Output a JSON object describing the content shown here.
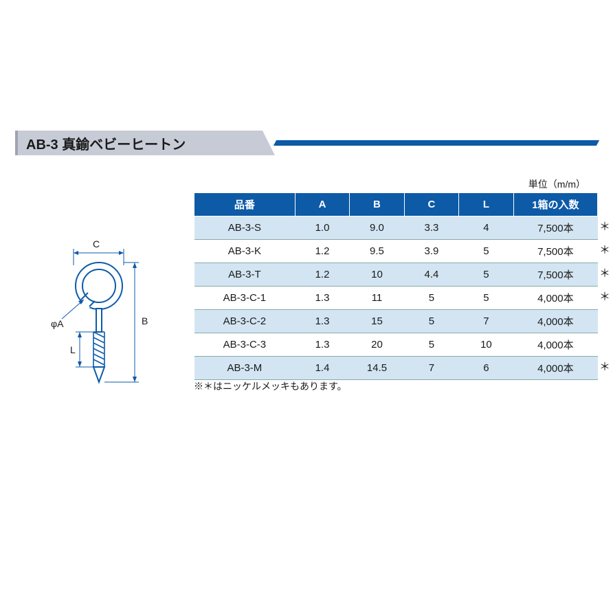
{
  "header": {
    "title": "AB-3 真鍮ベビーヒートン"
  },
  "unit_label": "単位（m/m）",
  "table": {
    "columns": [
      "品番",
      "A",
      "B",
      "C",
      "L",
      "1箱の入数"
    ],
    "rows": [
      {
        "part": "AB-3-S",
        "A": "1.0",
        "B": "9.0",
        "C": "3.3",
        "L": "4",
        "qty": "7,500本",
        "ast": "＊"
      },
      {
        "part": "AB-3-K",
        "A": "1.2",
        "B": "9.5",
        "C": "3.9",
        "L": "5",
        "qty": "7,500本",
        "ast": "＊"
      },
      {
        "part": "AB-3-T",
        "A": "1.2",
        "B": "10",
        "C": "4.4",
        "L": "5",
        "qty": "7,500本",
        "ast": "＊"
      },
      {
        "part": "AB-3-C-1",
        "A": "1.3",
        "B": "11",
        "C": "5",
        "L": "5",
        "qty": "4,000本",
        "ast": "＊"
      },
      {
        "part": "AB-3-C-2",
        "A": "1.3",
        "B": "15",
        "C": "5",
        "L": "7",
        "qty": "4,000本",
        "ast": ""
      },
      {
        "part": "AB-3-C-3",
        "A": "1.3",
        "B": "20",
        "C": "5",
        "L": "10",
        "qty": "4,000本",
        "ast": ""
      },
      {
        "part": "AB-3-M",
        "A": "1.4",
        "B": "14.5",
        "C": "7",
        "L": "6",
        "qty": "4,000本",
        "ast": "＊"
      }
    ]
  },
  "footnote": "※＊はニッケルメッキもあります。",
  "diagram": {
    "labels": {
      "A": "φA",
      "B": "B",
      "C": "C",
      "L": "L"
    },
    "colors": {
      "stroke": "#0d5aa7",
      "fill_light": "#d3e5f2"
    }
  },
  "styling": {
    "header_bg": "#c7cbd6",
    "header_accent": "#9fa4b3",
    "brand_blue": "#0d5aa7",
    "row_alt_bg": "#d3e5f2",
    "row_border": "#88aabb",
    "page_bg": "#ffffff",
    "font_body": 15,
    "font_header": 20,
    "font_small": 14
  }
}
